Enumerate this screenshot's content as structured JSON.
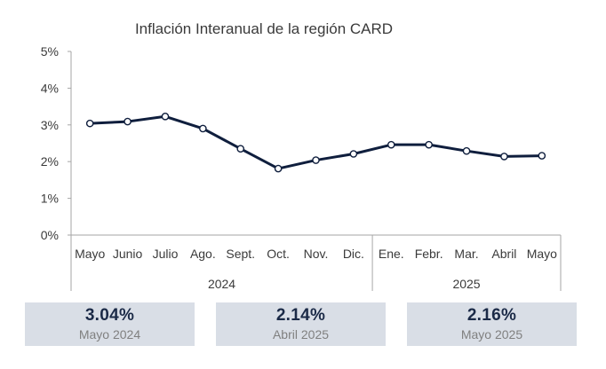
{
  "chart_data": {
    "type": "line",
    "title": "Inflación Interanual de la región CARD",
    "categories": [
      "Mayo",
      "Junio",
      "Julio",
      "Ago.",
      "Sept.",
      "Oct.",
      "Nov.",
      "Dic.",
      "Ene.",
      "Febr.",
      "Mar.",
      "Abril",
      "Mayo"
    ],
    "groups": [
      {
        "label": "2024",
        "count": 8
      },
      {
        "label": "2025",
        "count": 5
      }
    ],
    "series": [
      {
        "values": [
          3.04,
          3.09,
          3.23,
          2.9,
          2.35,
          1.81,
          2.04,
          2.21,
          2.46,
          2.46,
          2.29,
          2.14,
          2.16
        ]
      }
    ],
    "yticks": [
      "0%",
      "1%",
      "2%",
      "3%",
      "4%",
      "5%"
    ],
    "ylim": [
      0,
      5
    ],
    "grid": false,
    "line_color": "#0f1e3d",
    "marker_fill": "#ffffff"
  },
  "kpis": [
    {
      "value": "3.04%",
      "label": "Mayo 2024"
    },
    {
      "value": "2.14%",
      "label": "Abril 2025"
    },
    {
      "value": "2.16%",
      "label": "Mayo 2025"
    }
  ]
}
